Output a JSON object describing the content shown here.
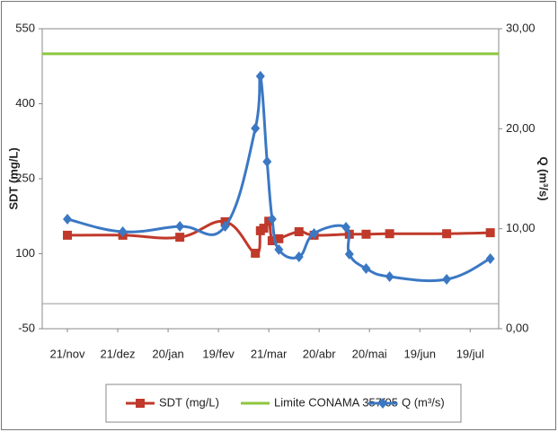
{
  "chart_data": {
    "type": "line",
    "y_label": "SDT (mg/L)",
    "y2_label": "Q (m³/s)",
    "xlim": [
      -15,
      257
    ],
    "xticks": [
      {
        "value": 0,
        "label": "21/nov"
      },
      {
        "value": 30,
        "label": "21/dez"
      },
      {
        "value": 60,
        "label": "20/jan"
      },
      {
        "value": 90,
        "label": "19/fev"
      },
      {
        "value": 120,
        "label": "21/mar"
      },
      {
        "value": 150,
        "label": "20/abr"
      },
      {
        "value": 180,
        "label": "20/mai"
      },
      {
        "value": 210,
        "label": "19/jun"
      },
      {
        "value": 240,
        "label": "19/jul"
      }
    ],
    "ylim": [
      -50,
      550
    ],
    "yticks": [
      -50,
      100,
      250,
      400,
      550
    ],
    "y2lim": [
      0,
      30
    ],
    "y2ticks": [
      {
        "value": 0,
        "label": "0,00"
      },
      {
        "value": 10,
        "label": "10,00"
      },
      {
        "value": 20,
        "label": "20,00"
      },
      {
        "value": 30,
        "label": "30,00"
      }
    ],
    "series": [
      {
        "name": "SDT (mg/L)",
        "color": "#c0392b",
        "marker": "square",
        "x": [
          0,
          33,
          67,
          94,
          112,
          115,
          117,
          120,
          122,
          126,
          138,
          147,
          168,
          178,
          192,
          226,
          252
        ],
        "values": [
          137,
          137,
          133,
          164,
          101,
          146,
          151,
          165,
          126,
          130,
          144,
          137,
          139,
          139,
          140,
          140,
          142
        ]
      },
      {
        "name": "Limite CONAMA 357/05",
        "color": "#8dc63f",
        "value": 500
      },
      {
        "name": "Q (m³/s)",
        "color": "#3b78c4",
        "marker": "diamond",
        "axis": "y2",
        "x": [
          0,
          33,
          67,
          94,
          112,
          115,
          119,
          122,
          126,
          138,
          147,
          166,
          168,
          178,
          192,
          226,
          252
        ],
        "values": [
          10.96,
          9.7,
          10.24,
          10.24,
          20.04,
          25.25,
          16.71,
          10.96,
          7.91,
          7.19,
          9.52,
          10.15,
          7.46,
          6.02,
          5.21,
          4.94,
          7.01
        ]
      }
    ]
  }
}
